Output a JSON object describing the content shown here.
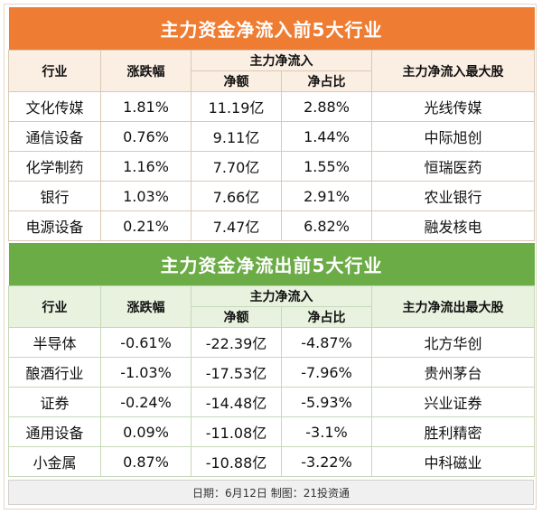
{
  "inflow": {
    "title": "主力资金净流入前5大行业",
    "headers": {
      "industry": "行业",
      "change": "涨跌幅",
      "group": "主力净流入",
      "net": "净额",
      "ratio": "净占比",
      "top_stock": "主力净流入最大股"
    },
    "rows": [
      {
        "industry": "文化传媒",
        "change": "1.81%",
        "net": "11.19亿",
        "ratio": "2.88%",
        "top_stock": "光线传媒"
      },
      {
        "industry": "通信设备",
        "change": "0.76%",
        "net": "9.11亿",
        "ratio": "1.44%",
        "top_stock": "中际旭创"
      },
      {
        "industry": "化学制药",
        "change": "1.16%",
        "net": "7.70亿",
        "ratio": "1.55%",
        "top_stock": "恒瑞医药"
      },
      {
        "industry": "银行",
        "change": "1.03%",
        "net": "7.66亿",
        "ratio": "2.91%",
        "top_stock": "农业银行"
      },
      {
        "industry": "电源设备",
        "change": "0.21%",
        "net": "7.47亿",
        "ratio": "6.82%",
        "top_stock": "融发核电"
      }
    ]
  },
  "outflow": {
    "title": "主力资金净流出前5大行业",
    "headers": {
      "industry": "行业",
      "change": "涨跌幅",
      "group": "主力净流入",
      "net": "净额",
      "ratio": "净占比",
      "top_stock": "主力净流出最大股"
    },
    "rows": [
      {
        "industry": "半导体",
        "change": "-0.61%",
        "net": "-22.39亿",
        "ratio": "-4.87%",
        "top_stock": "北方华创"
      },
      {
        "industry": "酿酒行业",
        "change": "-1.03%",
        "net": "-17.53亿",
        "ratio": "-7.96%",
        "top_stock": "贵州茅台"
      },
      {
        "industry": "证券",
        "change": "-0.24%",
        "net": "-14.48亿",
        "ratio": "-5.93%",
        "top_stock": "兴业证券"
      },
      {
        "industry": "通用设备",
        "change": "0.09%",
        "net": "-11.08亿",
        "ratio": "-3.1%",
        "top_stock": "胜利精密"
      },
      {
        "industry": "小金属",
        "change": "0.87%",
        "net": "-10.88亿",
        "ratio": "-3.22%",
        "top_stock": "中科磁业"
      }
    ]
  },
  "footer": "日期：6月12日  制图：21投资通"
}
